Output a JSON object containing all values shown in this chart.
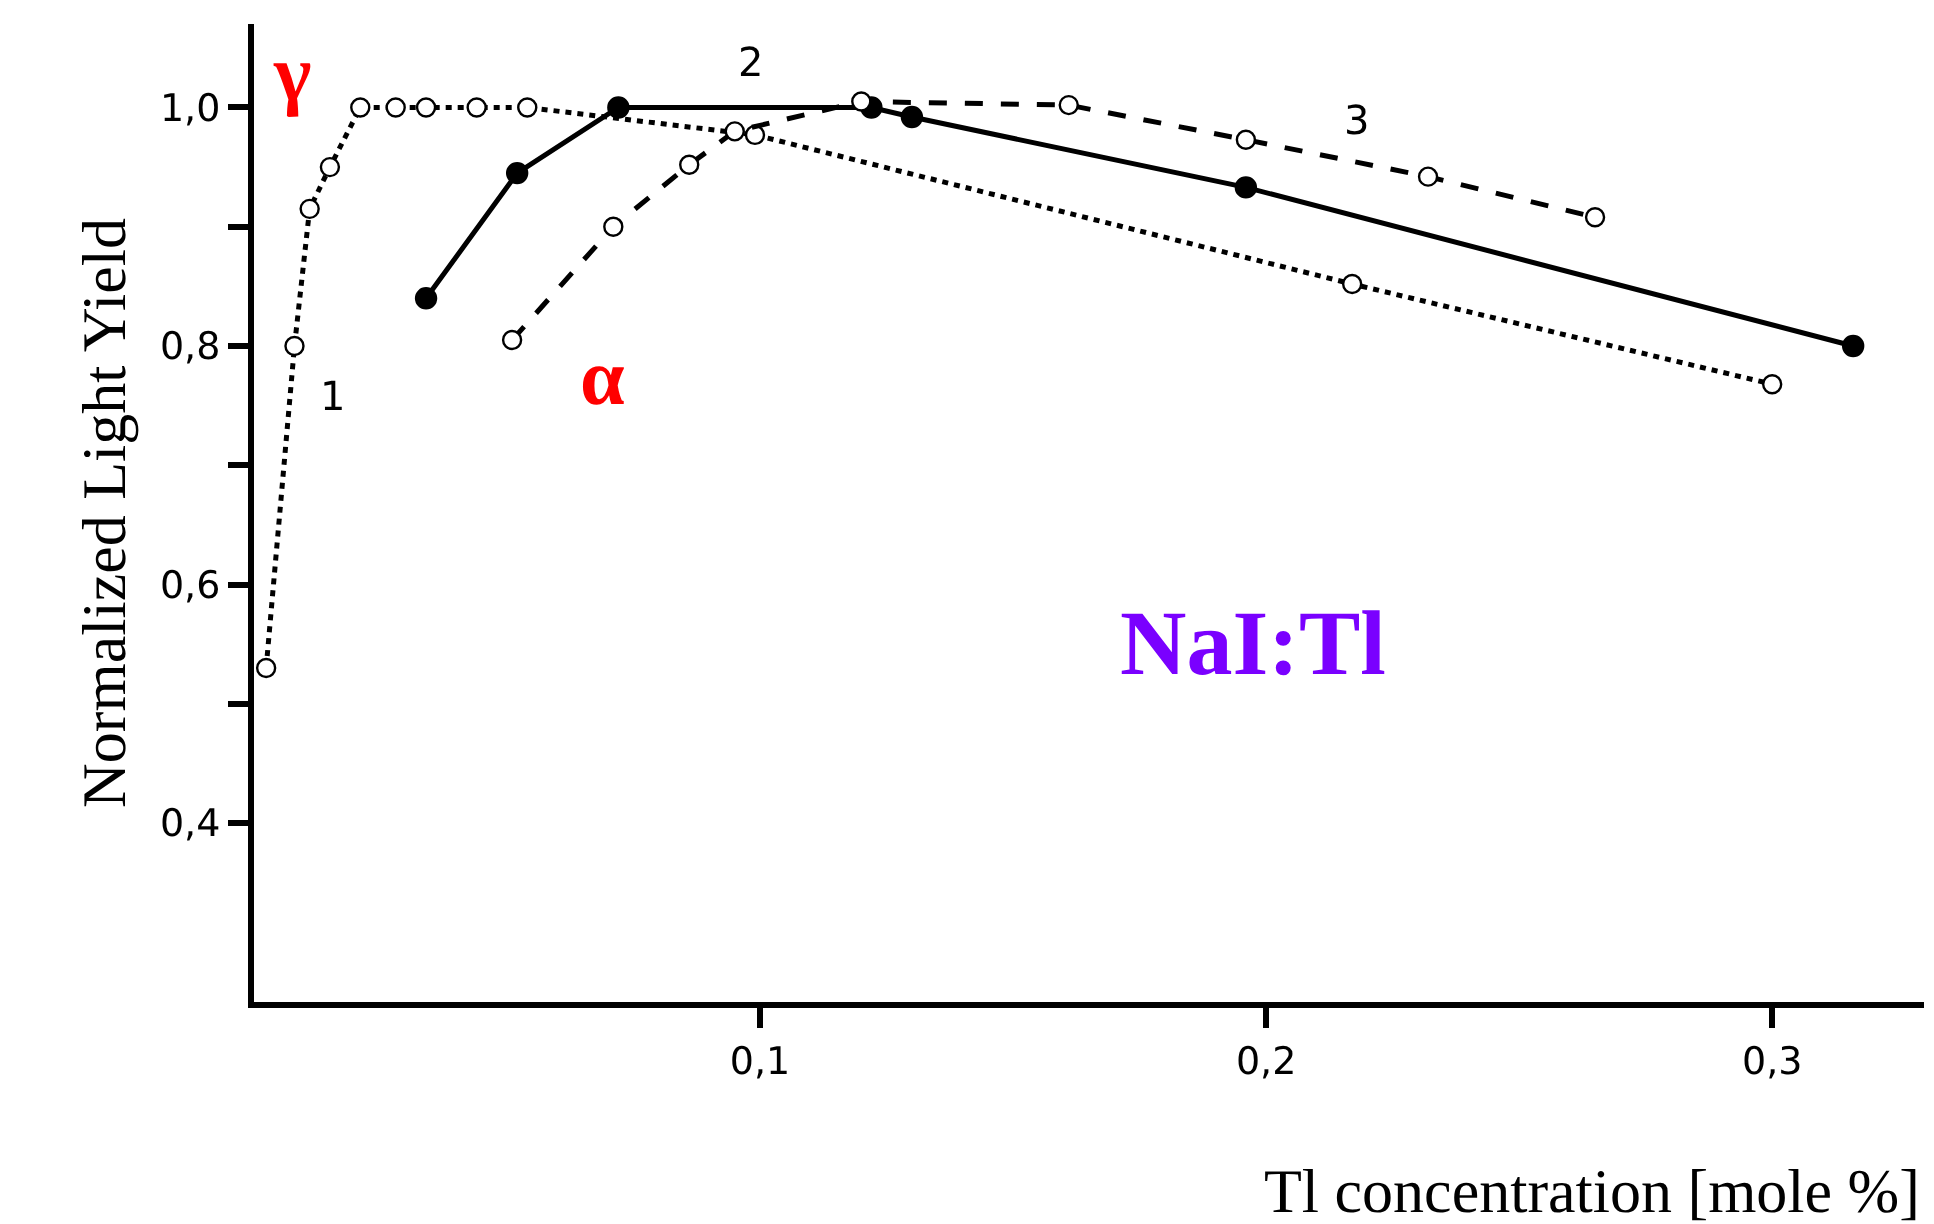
{
  "chart_data": {
    "type": "line",
    "xlabel": "Tl concentration [mole %]",
    "ylabel": "Normalized Light Yield",
    "series": [
      {
        "color": "#000000",
        "line_style": "dotted",
        "marker": "circle-open",
        "x": [
          0.0024,
          0.008,
          0.011,
          0.015,
          0.021,
          0.028,
          0.034,
          0.044,
          0.054,
          0.099,
          0.217,
          0.3
        ],
        "values": [
          0.53,
          0.8,
          0.915,
          0.95,
          1.0,
          1.0,
          1.0,
          1.0,
          1.0,
          0.977,
          0.852,
          0.768
        ]
      },
      {
        "color": "#000000",
        "line_style": "solid",
        "marker": "circle",
        "x": [
          0.034,
          0.052,
          0.072,
          0.122,
          0.13,
          0.196,
          0.316
        ],
        "values": [
          0.84,
          0.945,
          1.0,
          1.0,
          0.992,
          0.933,
          0.8
        ]
      },
      {
        "color": "#000000",
        "line_style": "dashed",
        "marker": "circle-open",
        "x": [
          0.051,
          0.071,
          0.086,
          0.095,
          0.12,
          0.161,
          0.196,
          0.232,
          0.265
        ],
        "values": [
          0.805,
          0.9,
          0.952,
          0.98,
          1.005,
          1.002,
          0.973,
          0.942,
          0.908
        ]
      }
    ],
    "annotations": [
      "1",
      "2",
      "3",
      "γ",
      "α",
      "NaI:Tl"
    ],
    "xlim": [
      0,
      0.33
    ],
    "ylim": [
      0.25,
      1.07
    ],
    "xticks": [
      {
        "value": 0.1,
        "label": "0,1"
      },
      {
        "value": 0.2,
        "label": "0,2"
      },
      {
        "value": 0.3,
        "label": "0,3"
      }
    ],
    "yticks": [
      {
        "value": 0.4,
        "label": "0,4"
      },
      {
        "value": 0.5,
        "label": null
      },
      {
        "value": 0.6,
        "label": "0,6"
      },
      {
        "value": 0.7,
        "label": null
      },
      {
        "value": 0.8,
        "label": "0,8"
      },
      {
        "value": 0.9,
        "label": null
      },
      {
        "value": 1.0,
        "label": "1,0"
      }
    ],
    "tick_labels": true
  }
}
